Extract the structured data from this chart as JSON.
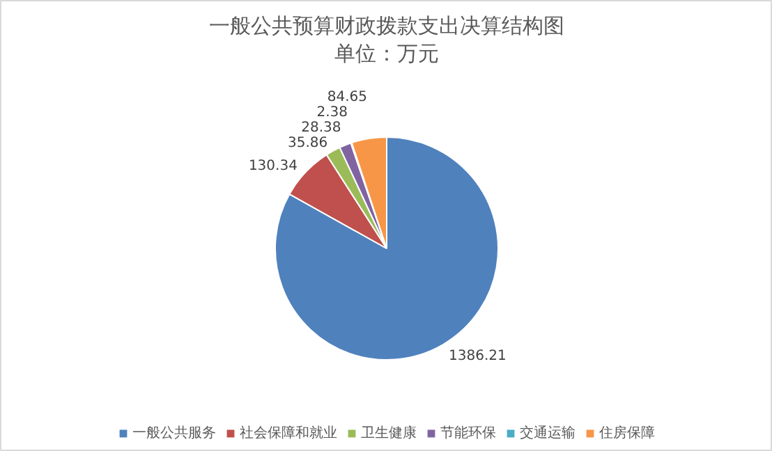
{
  "chart_data": {
    "type": "pie",
    "title": "一般公共预算财政拨款支出决算结构图",
    "subtitle": "单位：万元",
    "categories": [
      "一般公共服务",
      "社会保障和就业",
      "卫生健康",
      "节能环保",
      "交通运输",
      "住房保障"
    ],
    "values": [
      1386.21,
      130.34,
      35.86,
      28.38,
      2.38,
      84.65
    ],
    "colors": [
      "#4f81bd",
      "#c0504d",
      "#9bbb59",
      "#8064a2",
      "#4bacc6",
      "#f79646"
    ],
    "data_labels": true,
    "legend": "bottom"
  }
}
